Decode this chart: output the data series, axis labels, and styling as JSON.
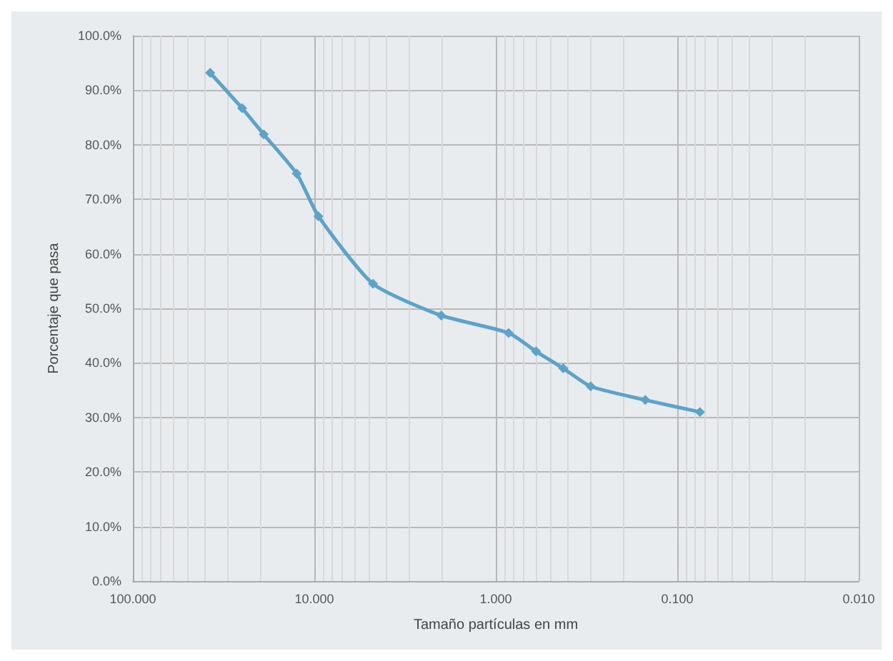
{
  "chart_data": {
    "type": "line",
    "xlabel": "Tamaño partículas en mm",
    "ylabel": "Porcentaje que pasa",
    "series": [
      {
        "color": "#5ba3c9",
        "x": [
          37.5,
          25,
          19,
          12.5,
          9.5,
          4.75,
          2.0,
          0.85,
          0.6,
          0.425,
          0.3,
          0.15,
          0.075
        ],
        "values": [
          93.2,
          86.7,
          81.9,
          74.7,
          66.9,
          54.5,
          48.7,
          45.5,
          42.1,
          39.0,
          35.7,
          33.2,
          31.0
        ]
      }
    ],
    "log": "x",
    "xlim": [
      100,
      0.01
    ],
    "xticks": [
      {
        "value": 100,
        "label": "100.000"
      },
      {
        "value": 10,
        "label": "10.000"
      },
      {
        "value": 1,
        "label": "1.000"
      },
      {
        "value": 0.1,
        "label": "0.100"
      },
      {
        "value": 0.01,
        "label": "0.010"
      }
    ],
    "ylim": [
      0,
      100
    ],
    "yticks": [
      {
        "value": 0,
        "label": "0.0%"
      },
      {
        "value": 10,
        "label": "10.0%"
      },
      {
        "value": 20,
        "label": "20.0%"
      },
      {
        "value": 30,
        "label": "30.0%"
      },
      {
        "value": 40,
        "label": "40.0%"
      },
      {
        "value": 50,
        "label": "50.0%"
      },
      {
        "value": 60,
        "label": "60.0%"
      },
      {
        "value": 70,
        "label": "70.0%"
      },
      {
        "value": 80,
        "label": "80.0%"
      },
      {
        "value": 90,
        "label": "90.0%"
      },
      {
        "value": 100,
        "label": "100.0%"
      }
    ],
    "grid": true,
    "marker": "diamond",
    "line_style": "solid"
  }
}
